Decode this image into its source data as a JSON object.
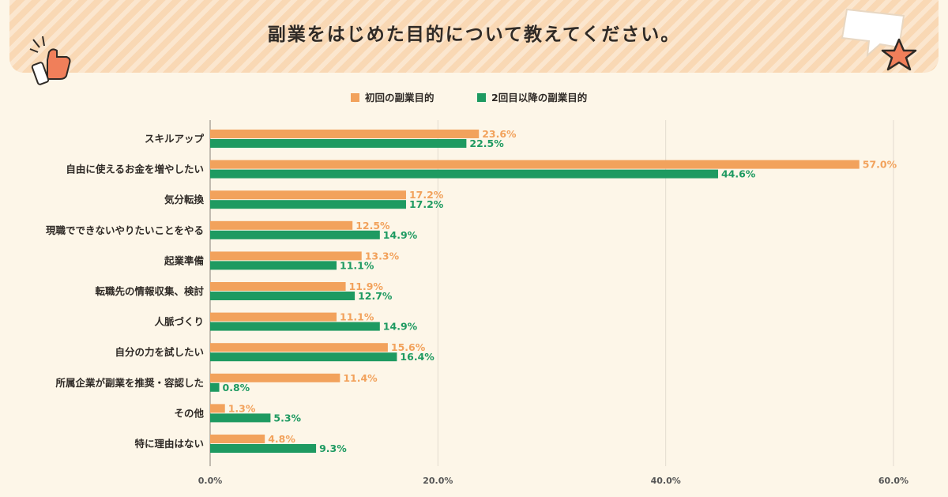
{
  "chart_data": {
    "type": "bar",
    "orientation": "horizontal",
    "title": "副業をはじめた目的について教えてください。",
    "categories": [
      "スキルアップ",
      "自由に使えるお金を増やしたい",
      "気分転換",
      "現職でできないやりたいことをやる",
      "起業準備",
      "転職先の情報収集、検討",
      "人脈づくり",
      "自分の力を試したい",
      "所属企業が副業を推奨・容認した",
      "その他",
      "特に理由はない"
    ],
    "series": [
      {
        "name": "初回の副業目的",
        "color": "#f2a25c",
        "values": [
          23.6,
          57.0,
          17.2,
          12.5,
          13.3,
          11.9,
          11.1,
          15.6,
          11.4,
          1.3,
          4.8
        ]
      },
      {
        "name": "2回目以降の副業目的",
        "color": "#1e9a61",
        "values": [
          22.5,
          44.6,
          17.2,
          14.9,
          11.1,
          12.7,
          14.9,
          16.4,
          0.8,
          5.3,
          9.3
        ]
      }
    ],
    "xlim": [
      0,
      60
    ],
    "xticks": [
      "0.0%",
      "20.0%",
      "40.0%",
      "60.0%"
    ],
    "value_suffix": "%",
    "legend_position": "top",
    "grid": true
  }
}
